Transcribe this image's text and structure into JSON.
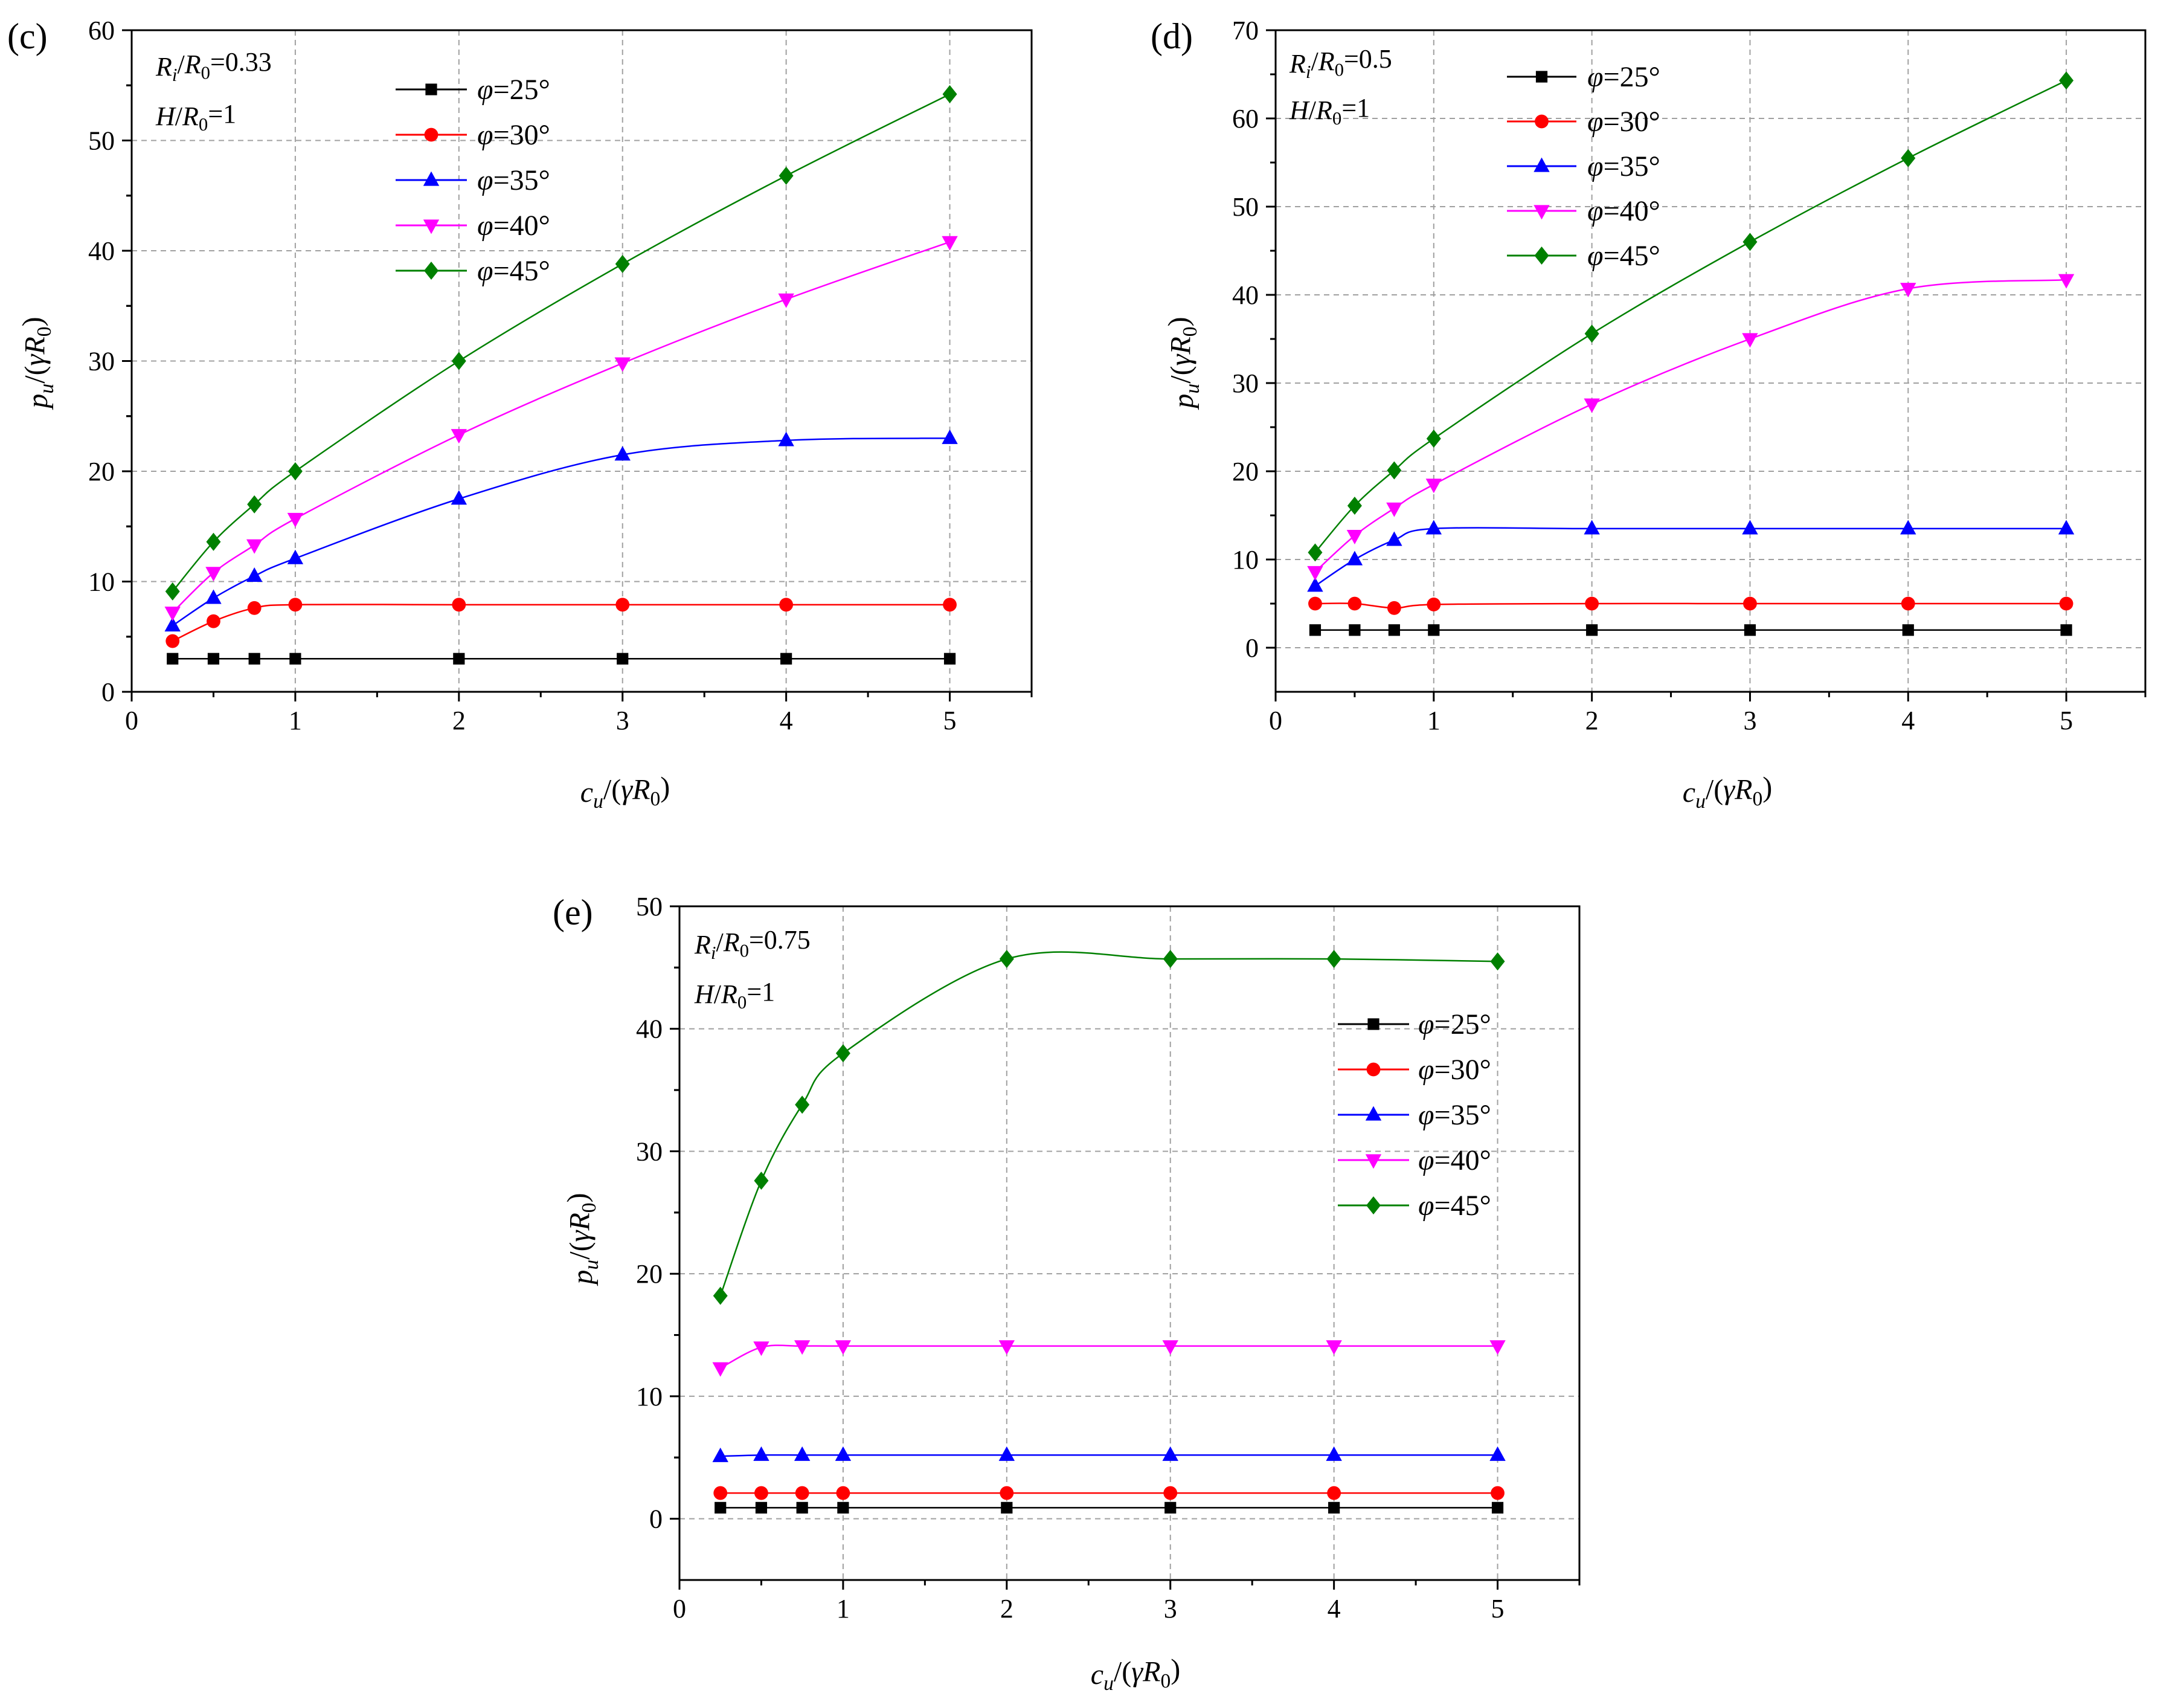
{
  "figure": {
    "panels": [
      {
        "label": "(c)",
        "annotation_lines": [
          [
            {
              "t": "R",
              "i": true
            },
            {
              "t": "i",
              "i": true,
              "sub": true
            },
            {
              "t": "/"
            },
            {
              "t": "R",
              "i": true
            },
            {
              "t": "0",
              "sub": true
            },
            {
              "t": "=0.33"
            }
          ],
          [
            {
              "t": "H",
              "i": true
            },
            {
              "t": "/"
            },
            {
              "t": "R",
              "i": true
            },
            {
              "t": "0",
              "sub": true
            },
            {
              "t": "=1"
            }
          ]
        ]
      },
      {
        "label": "(d)",
        "annotation_lines": [
          [
            {
              "t": "R",
              "i": true
            },
            {
              "t": "i",
              "i": true,
              "sub": true
            },
            {
              "t": "/"
            },
            {
              "t": "R",
              "i": true
            },
            {
              "t": "0",
              "sub": true
            },
            {
              "t": "=0.5"
            }
          ],
          [
            {
              "t": "H",
              "i": true
            },
            {
              "t": "/"
            },
            {
              "t": "R",
              "i": true
            },
            {
              "t": "0",
              "sub": true
            },
            {
              "t": "=1"
            }
          ]
        ]
      },
      {
        "label": "(e)",
        "annotation_lines": [
          [
            {
              "t": "R",
              "i": true
            },
            {
              "t": "i",
              "i": true,
              "sub": true
            },
            {
              "t": "/"
            },
            {
              "t": "R",
              "i": true
            },
            {
              "t": "0",
              "sub": true
            },
            {
              "t": "=0.75"
            }
          ],
          [
            {
              "t": "H",
              "i": true
            },
            {
              "t": "/"
            },
            {
              "t": "R",
              "i": true
            },
            {
              "t": "0",
              "sub": true
            },
            {
              "t": "=1"
            }
          ]
        ]
      }
    ],
    "xlabel": [
      {
        "t": "c",
        "i": true
      },
      {
        "t": "u",
        "i": true,
        "sub": true
      },
      {
        "t": "/("
      },
      {
        "t": "γR",
        "i": true
      },
      {
        "t": "0",
        "sub": true
      },
      {
        "t": ")"
      }
    ],
    "ylabel": [
      {
        "t": "p",
        "i": true
      },
      {
        "t": "u",
        "i": true,
        "sub": true
      },
      {
        "t": "/("
      },
      {
        "t": "γR",
        "i": true
      },
      {
        "t": "0",
        "sub": true
      },
      {
        "t": ")"
      }
    ],
    "colors": {
      "phi25": "#000000",
      "phi30": "#ff0000",
      "phi35": "#0000ff",
      "phi40": "#ff00ff",
      "phi45": "#008000",
      "grid": "#a0a0a0"
    },
    "markers": {
      "phi25": "square",
      "phi30": "circle",
      "phi35": "triangle-up",
      "phi40": "triangle-down",
      "phi45": "diamond"
    }
  },
  "chart_data": [
    {
      "type": "line",
      "title": "(c)",
      "annotation": "Ri/R0=0.33, H/R0=1",
      "xlabel": "cu/(γR0)",
      "ylabel": "pu/(γR0)",
      "xlim": [
        0,
        5.5
      ],
      "ylim": [
        0,
        60
      ],
      "xticks": [
        0,
        1,
        2,
        3,
        4,
        5
      ],
      "yticks": [
        0,
        10,
        20,
        30,
        40,
        50,
        60
      ],
      "grid": true,
      "legend_position": "top-center",
      "x": [
        0.25,
        0.5,
        0.75,
        1,
        2,
        3,
        4,
        5
      ],
      "series": [
        {
          "name": "φ=25°",
          "key": "phi25",
          "values": [
            3.0,
            3.0,
            3.0,
            3.0,
            3.0,
            3.0,
            3.0,
            3.0
          ]
        },
        {
          "name": "φ=30°",
          "key": "phi30",
          "values": [
            4.6,
            6.4,
            7.6,
            7.9,
            7.9,
            7.9,
            7.9,
            7.9
          ]
        },
        {
          "name": "φ=35°",
          "key": "phi35",
          "values": [
            6.0,
            8.5,
            10.5,
            12.1,
            17.5,
            21.5,
            22.8,
            23.0
          ]
        },
        {
          "name": "φ=40°",
          "key": "phi40",
          "values": [
            7.2,
            10.8,
            13.3,
            15.7,
            23.3,
            29.8,
            35.6,
            40.8
          ]
        },
        {
          "name": "φ=45°",
          "key": "phi45",
          "values": [
            9.1,
            13.6,
            17.0,
            20.0,
            30.0,
            38.8,
            46.8,
            54.2
          ]
        }
      ]
    },
    {
      "type": "line",
      "title": "(d)",
      "annotation": "Ri/R0=0.5, H/R0=1",
      "xlabel": "cu/(γR0)",
      "ylabel": "pu/(γR0)",
      "xlim": [
        0,
        5.5
      ],
      "ylim": [
        -5,
        70
      ],
      "xticks": [
        0,
        1,
        2,
        3,
        4,
        5
      ],
      "yticks": [
        0,
        10,
        20,
        30,
        40,
        50,
        60,
        70
      ],
      "grid": true,
      "legend_position": "top-center",
      "x": [
        0.25,
        0.5,
        0.75,
        1,
        2,
        3,
        4,
        5
      ],
      "series": [
        {
          "name": "φ=25°",
          "key": "phi25",
          "values": [
            2.0,
            2.0,
            2.0,
            2.0,
            2.0,
            2.0,
            2.0,
            2.0
          ]
        },
        {
          "name": "φ=30°",
          "key": "phi30",
          "values": [
            5.0,
            5.0,
            4.5,
            4.9,
            5.0,
            5.0,
            5.0,
            5.0
          ]
        },
        {
          "name": "φ=35°",
          "key": "phi35",
          "values": [
            7.0,
            10.0,
            12.2,
            13.5,
            13.5,
            13.5,
            13.5,
            13.5
          ]
        },
        {
          "name": "φ=40°",
          "key": "phi40",
          "values": [
            8.6,
            12.7,
            15.8,
            18.5,
            27.6,
            35.0,
            40.7,
            41.7
          ]
        },
        {
          "name": "φ=45°",
          "key": "phi45",
          "values": [
            10.8,
            16.1,
            20.1,
            23.7,
            35.6,
            46.0,
            55.5,
            64.3
          ]
        }
      ]
    },
    {
      "type": "line",
      "title": "(e)",
      "annotation": "Ri/R0=0.75, H/R0=1",
      "xlabel": "cu/(γR0)",
      "ylabel": "pu/(γR0)",
      "xlim": [
        0,
        5.5
      ],
      "ylim": [
        -5,
        50
      ],
      "xticks": [
        0,
        1,
        2,
        3,
        4,
        5
      ],
      "yticks": [
        0,
        10,
        20,
        30,
        40,
        50
      ],
      "grid": true,
      "legend_position": "middle-right",
      "x": [
        0.25,
        0.5,
        0.75,
        1,
        2,
        3,
        4,
        5
      ],
      "series": [
        {
          "name": "φ=25°",
          "key": "phi25",
          "values": [
            0.9,
            0.9,
            0.9,
            0.9,
            0.9,
            0.9,
            0.9,
            0.9
          ]
        },
        {
          "name": "φ=30°",
          "key": "phi30",
          "values": [
            2.1,
            2.1,
            2.1,
            2.1,
            2.1,
            2.1,
            2.1,
            2.1
          ]
        },
        {
          "name": "φ=35°",
          "key": "phi35",
          "values": [
            5.1,
            5.2,
            5.2,
            5.2,
            5.2,
            5.2,
            5.2,
            5.2
          ]
        },
        {
          "name": "φ=40°",
          "key": "phi40",
          "values": [
            12.3,
            14.0,
            14.1,
            14.1,
            14.1,
            14.1,
            14.1,
            14.1
          ]
        },
        {
          "name": "φ=45°",
          "key": "phi45",
          "values": [
            18.2,
            27.6,
            33.8,
            38.0,
            45.7,
            45.7,
            45.7,
            45.5
          ]
        }
      ]
    }
  ]
}
